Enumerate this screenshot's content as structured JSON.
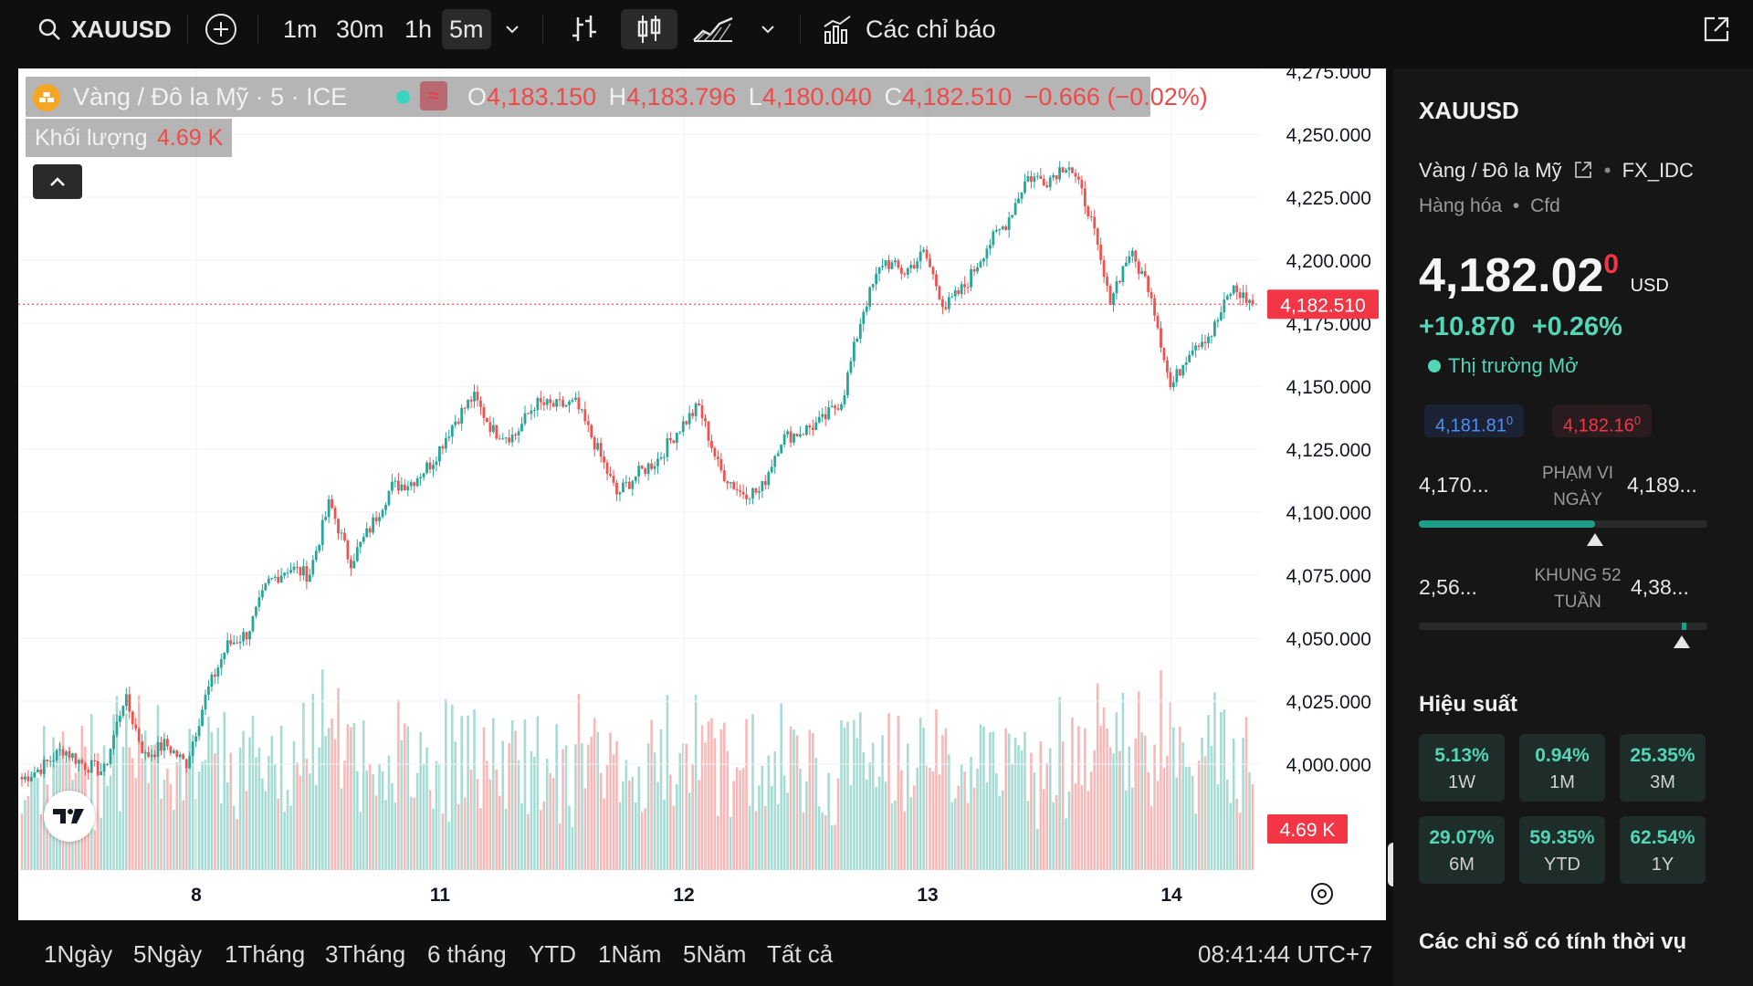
{
  "toolbar": {
    "symbol": "XAUUSD",
    "intervals": [
      "1m",
      "30m",
      "1h",
      "5m"
    ],
    "indicators_label": "Các chỉ báo"
  },
  "legend": {
    "title": "Vàng / Đô la Mỹ · 5 · ICE",
    "o_label": "O",
    "o_value": "4,183.150",
    "h_label": "H",
    "h_value": "4,183.796",
    "l_label": "L",
    "l_value": "4,180.040",
    "c_label": "C",
    "c_value": "4,182.510",
    "change": "−0.666 (−0.02%)",
    "volume_label": "Khối lượng",
    "volume_value": "4.69 K"
  },
  "chart_data": {
    "type": "candlestick",
    "symbol": "XAUUSD",
    "x_ticks": [
      "8",
      "11",
      "12",
      "13",
      "14"
    ],
    "y_ticks": [
      "4,275.000",
      "4,250.000",
      "4,225.000",
      "4,200.000",
      "4,175.000",
      "4,150.000",
      "4,125.000",
      "4,100.000",
      "4,075.000",
      "4,050.000",
      "4,025.000",
      "4,000.000"
    ],
    "ylim": [
      3990,
      4278
    ],
    "close_path": [
      [
        "8 open",
        3994
      ],
      [
        "",
        3999
      ],
      [
        "",
        4006
      ],
      [
        "",
        4000
      ],
      [
        "",
        3997
      ],
      [
        "",
        4027
      ],
      [
        "",
        4003
      ],
      [
        "",
        4008
      ],
      [
        "",
        4000
      ],
      [
        "",
        4028
      ],
      [
        "",
        4047
      ],
      [
        "",
        4052
      ],
      [
        "",
        4072
      ],
      [
        "",
        4078
      ],
      [
        "",
        4075
      ],
      [
        "",
        4104
      ],
      [
        "",
        4080
      ],
      [
        "",
        4094
      ],
      [
        "",
        4110
      ],
      [
        "",
        4112
      ],
      [
        "",
        4120
      ],
      [
        "",
        4135
      ],
      [
        "",
        4146
      ],
      [
        "",
        4132
      ],
      [
        "",
        4130
      ],
      [
        "",
        4143
      ],
      [
        "",
        4142
      ],
      [
        "",
        4143
      ],
      [
        "",
        4126
      ],
      [
        "",
        4107
      ],
      [
        "",
        4115
      ],
      [
        "",
        4121
      ],
      [
        "",
        4133
      ],
      [
        "",
        4142
      ],
      [
        "",
        4117
      ],
      [
        "",
        4108
      ],
      [
        "",
        4108
      ],
      [
        "",
        4129
      ],
      [
        "",
        4132
      ],
      [
        "",
        4136
      ],
      [
        "",
        4145
      ],
      [
        "",
        4180
      ],
      [
        "",
        4200
      ],
      [
        "",
        4195
      ],
      [
        "",
        4203
      ],
      [
        "",
        4181
      ],
      [
        "",
        4190
      ],
      [
        "",
        4205
      ],
      [
        "",
        4215
      ],
      [
        "",
        4233
      ],
      [
        "",
        4232
      ],
      [
        "",
        4239
      ],
      [
        "",
        4220
      ],
      [
        "",
        4184
      ],
      [
        "",
        4203
      ],
      [
        "",
        4189
      ],
      [
        "",
        4149
      ],
      [
        "",
        4166
      ],
      [
        "",
        4171
      ],
      [
        "",
        4189
      ],
      [
        "14 end",
        4182.51
      ]
    ],
    "last_price": "4,182.510",
    "last_volume": "4.69 K"
  },
  "footer": {
    "ranges": [
      "1Ngày",
      "5Ngày",
      "1Tháng",
      "3Tháng",
      "6 tháng",
      "YTD",
      "1Năm",
      "5Năm",
      "Tất cả"
    ],
    "time": "08:41:44 UTC+7"
  },
  "sidebar": {
    "symbol": "XAUUSD",
    "name": "Vàng / Đô la Mỹ",
    "source": "FX_IDC",
    "category": "Hàng hóa",
    "type": "Cfd",
    "price_main": "4,182.02",
    "price_small": "0",
    "currency": "USD",
    "change_abs": "+10.870",
    "change_pct": "+0.26%",
    "market_status": "Thị trường Mở",
    "bid_main": "4,181.81",
    "bid_small": "0",
    "ask_main": "4,182.16",
    "ask_small": "0",
    "day_low": "4,170...",
    "day_high": "4,189...",
    "day_label_1": "PHẠM VI",
    "day_label_2": "NGÀY",
    "day_position": 0.61,
    "week52_low": "2,56...",
    "week52_high": "4,38...",
    "w52_label_1": "KHUNG 52",
    "w52_label_2": "TUẦN",
    "week52_position": 0.91,
    "performance_title": "Hiệu suất",
    "performance": [
      {
        "value": "5.13%",
        "period": "1W"
      },
      {
        "value": "0.94%",
        "period": "1M"
      },
      {
        "value": "25.35%",
        "period": "3M"
      },
      {
        "value": "29.07%",
        "period": "6M"
      },
      {
        "value": "59.35%",
        "period": "YTD"
      },
      {
        "value": "62.54%",
        "period": "1Y"
      }
    ],
    "seasonal_title": "Các chỉ số có tính thời vụ"
  },
  "colors": {
    "up": "#26a69a",
    "down": "#ef5350",
    "accent_green": "#52d6b6",
    "bid_blue": "#2f7cf6",
    "ask_red": "#f23645"
  }
}
